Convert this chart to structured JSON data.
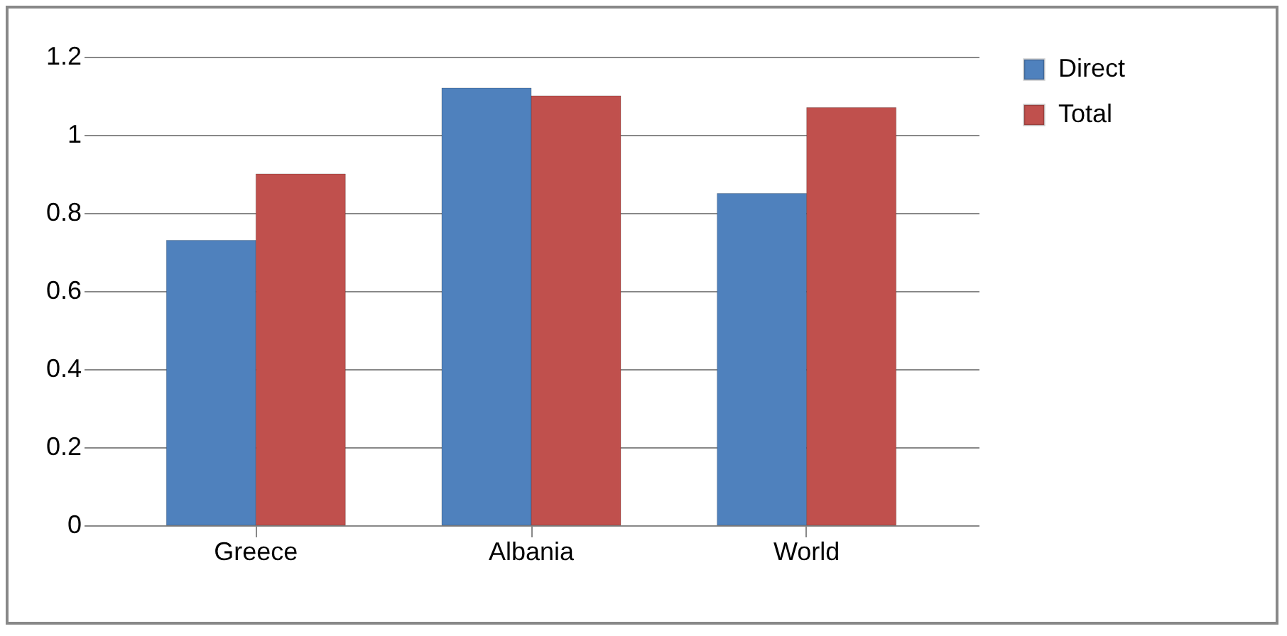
{
  "chart_data": {
    "type": "bar",
    "categories": [
      "Greece",
      "Albania",
      "World"
    ],
    "series": [
      {
        "name": "Direct",
        "color": "#4f81bd",
        "values": [
          0.73,
          1.12,
          0.85
        ]
      },
      {
        "name": "Total",
        "color": "#c0504d",
        "values": [
          0.9,
          1.1,
          1.07
        ]
      }
    ],
    "ylim": [
      0,
      1.2
    ],
    "yticks": [
      0,
      0.2,
      0.4,
      0.6,
      0.8,
      1,
      1.2
    ],
    "grid": "y",
    "legend": "right"
  }
}
